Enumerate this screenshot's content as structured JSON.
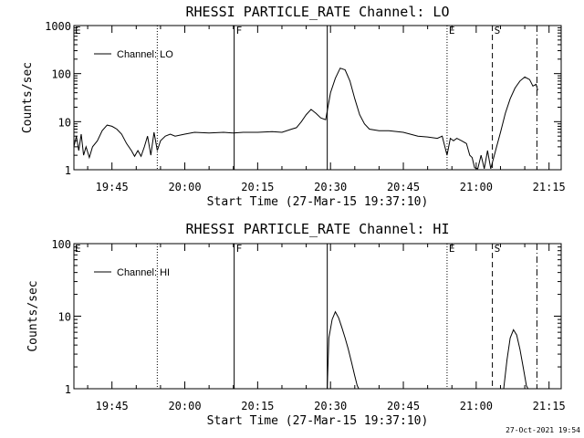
{
  "footer_stamp": "27-Oct-2021 19:54",
  "chart_data": [
    {
      "type": "line",
      "title": "RHESSI PARTICLE_RATE Channel: LO",
      "xlabel": "Start Time (27-Mar-15 19:37:10)",
      "ylabel": "Counts/sec",
      "y_scale": "log",
      "ylim": [
        1,
        1000
      ],
      "xlim": [
        "19:37:10",
        "21:17:30"
      ],
      "x_tick_labels": [
        "19:45",
        "20:00",
        "20:15",
        "20:30",
        "20:45",
        "21:00",
        "21:15"
      ],
      "y_tick_labels": [
        "1",
        "10",
        "100",
        "1000"
      ],
      "legend": {
        "position": "top-left",
        "entries": [
          "Channel: LO"
        ]
      },
      "markers": [
        {
          "time": "19:54:20",
          "style": "dotted",
          "label": ""
        },
        {
          "time": "20:10:10",
          "style": "solid",
          "label": "F"
        },
        {
          "time": "20:29:20",
          "style": "solid",
          "label": ""
        },
        {
          "time": "20:54:00",
          "style": "dotted",
          "label": "E"
        },
        {
          "time": "21:03:20",
          "style": "dashed",
          "label": "S"
        },
        {
          "time": "21:12:30",
          "style": "dashdot",
          "label": ""
        }
      ],
      "series": [
        {
          "name": "Channel: LO",
          "points": [
            [
              "19:37:10",
              3
            ],
            [
              "19:37:40",
              5
            ],
            [
              "19:38:10",
              2.5
            ],
            [
              "19:38:40",
              5.5
            ],
            [
              "19:39:10",
              2
            ],
            [
              "19:39:40",
              3
            ],
            [
              "19:40:20",
              1.8
            ],
            [
              "19:41:00",
              3
            ],
            [
              "19:42:00",
              4
            ],
            [
              "19:43:00",
              6.5
            ],
            [
              "19:44:00",
              8.5
            ],
            [
              "19:45:00",
              8
            ],
            [
              "19:46:00",
              7
            ],
            [
              "19:47:00",
              5.5
            ],
            [
              "19:48:00",
              3.5
            ],
            [
              "19:49:00",
              2.5
            ],
            [
              "19:49:40",
              1.9
            ],
            [
              "19:50:20",
              2.5
            ],
            [
              "19:51:00",
              1.9
            ],
            [
              "19:51:40",
              3
            ],
            [
              "19:52:20",
              5
            ],
            [
              "19:53:00",
              2
            ],
            [
              "19:53:40",
              6
            ],
            [
              "19:54:20",
              2.5
            ],
            [
              "19:55:00",
              4
            ],
            [
              "19:56:00",
              5
            ],
            [
              "19:57:00",
              5.5
            ],
            [
              "19:58:00",
              5
            ],
            [
              "20:00:00",
              5.5
            ],
            [
              "20:02:00",
              6
            ],
            [
              "20:05:00",
              5.8
            ],
            [
              "20:08:00",
              6
            ],
            [
              "20:10:00",
              5.8
            ],
            [
              "20:12:00",
              6
            ],
            [
              "20:15:00",
              6
            ],
            [
              "20:18:00",
              6.2
            ],
            [
              "20:20:00",
              6
            ],
            [
              "20:22:00",
              7
            ],
            [
              "20:23:00",
              7.5
            ],
            [
              "20:24:00",
              10
            ],
            [
              "20:25:00",
              14
            ],
            [
              "20:26:00",
              18
            ],
            [
              "20:27:00",
              15
            ],
            [
              "20:28:00",
              12
            ],
            [
              "20:29:00",
              11
            ],
            [
              "20:30:00",
              40
            ],
            [
              "20:31:00",
              80
            ],
            [
              "20:32:00",
              130
            ],
            [
              "20:33:00",
              120
            ],
            [
              "20:34:00",
              70
            ],
            [
              "20:35:00",
              30
            ],
            [
              "20:36:00",
              14
            ],
            [
              "20:37:00",
              9
            ],
            [
              "20:38:00",
              7
            ],
            [
              "20:40:00",
              6.5
            ],
            [
              "20:42:00",
              6.5
            ],
            [
              "20:45:00",
              6
            ],
            [
              "20:48:00",
              5
            ],
            [
              "20:50:00",
              4.8
            ],
            [
              "20:52:00",
              4.5
            ],
            [
              "20:53:00",
              5
            ],
            [
              "20:54:00",
              2
            ],
            [
              "20:54:40",
              4.5
            ],
            [
              "20:55:20",
              4
            ],
            [
              "20:56:00",
              4.5
            ],
            [
              "20:57:00",
              4
            ],
            [
              "20:58:00",
              3.5
            ],
            [
              "20:58:40",
              2
            ],
            [
              "20:59:10",
              1.8
            ],
            [
              "20:59:40",
              1.1
            ],
            [
              "21:00:20",
              1.05
            ],
            [
              "21:01:00",
              2
            ],
            [
              "21:01:40",
              1.05
            ],
            [
              "21:02:20",
              2.5
            ],
            [
              "21:03:00",
              1.05
            ],
            [
              "21:04:00",
              2.5
            ],
            [
              "21:05:00",
              6
            ],
            [
              "21:06:00",
              15
            ],
            [
              "21:07:00",
              30
            ],
            [
              "21:08:00",
              50
            ],
            [
              "21:09:00",
              70
            ],
            [
              "21:10:00",
              85
            ],
            [
              "21:11:00",
              75
            ],
            [
              "21:11:40",
              55
            ],
            [
              "21:12:20",
              60
            ],
            [
              "21:12:40",
              45
            ]
          ]
        }
      ]
    },
    {
      "type": "line",
      "title": "RHESSI PARTICLE_RATE Channel: HI",
      "xlabel": "Start Time (27-Mar-15 19:37:10)",
      "ylabel": "Counts/sec",
      "y_scale": "log",
      "ylim": [
        1,
        100
      ],
      "xlim": [
        "19:37:10",
        "21:17:30"
      ],
      "x_tick_labels": [
        "19:45",
        "20:00",
        "20:15",
        "20:30",
        "20:45",
        "21:00",
        "21:15"
      ],
      "y_tick_labels": [
        "1",
        "10",
        "100"
      ],
      "legend": {
        "position": "top-left",
        "entries": [
          "Channel: HI"
        ]
      },
      "markers": [
        {
          "time": "19:54:20",
          "style": "dotted",
          "label": ""
        },
        {
          "time": "20:10:10",
          "style": "solid",
          "label": "F"
        },
        {
          "time": "20:29:20",
          "style": "solid",
          "label": ""
        },
        {
          "time": "20:54:00",
          "style": "dotted",
          "label": "E"
        },
        {
          "time": "21:03:20",
          "style": "dashed",
          "label": "S"
        },
        {
          "time": "21:12:30",
          "style": "dashdot",
          "label": ""
        }
      ],
      "series": [
        {
          "name": "Channel: HI",
          "points": [
            [
              "20:29:20",
              1
            ],
            [
              "20:29:40",
              5
            ],
            [
              "20:30:20",
              9
            ],
            [
              "20:31:00",
              11.5
            ],
            [
              "20:31:40",
              9.5
            ],
            [
              "20:32:20",
              7
            ],
            [
              "20:33:00",
              5
            ],
            [
              "20:33:40",
              3.5
            ],
            [
              "20:34:20",
              2.3
            ],
            [
              "20:35:00",
              1.5
            ],
            [
              "20:35:30",
              1.1
            ],
            [
              "20:35:50",
              1
            ]
          ]
        },
        {
          "name": "Channel: HI",
          "points": [
            [
              "21:05:40",
              1
            ],
            [
              "21:06:20",
              2.5
            ],
            [
              "21:07:00",
              5
            ],
            [
              "21:07:40",
              6.5
            ],
            [
              "21:08:20",
              5.5
            ],
            [
              "21:09:00",
              3.5
            ],
            [
              "21:09:40",
              2
            ],
            [
              "21:10:20",
              1.1
            ],
            [
              "21:10:40",
              1
            ]
          ]
        }
      ]
    }
  ]
}
